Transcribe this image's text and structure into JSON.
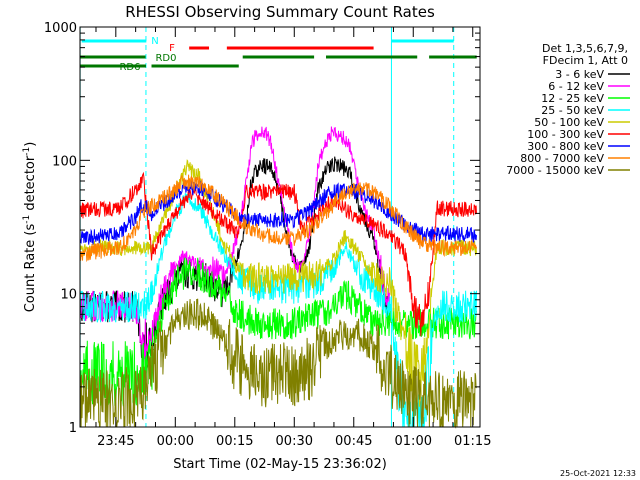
{
  "chart_data": {
    "type": "line",
    "title": "RHESSI Observing Summary Count Rates",
    "xlabel": "Start Time (02-May-15 23:36:02)",
    "ylabel_main": "Count Rate (s",
    "ylabel_sup": "-1",
    "ylabel_tail": " detector",
    "ylabel_sup2": "-1",
    "ylabel_close": ")",
    "yscale": "log",
    "ylim": [
      1,
      1000
    ],
    "xlim_minutes": [
      -24.03,
      76.83
    ],
    "x_unit": "minutes after 00:00 (03-May-15)",
    "x_ticks": [
      {
        "m": -15,
        "label": "23:45"
      },
      {
        "m": 0,
        "label": "00:00"
      },
      {
        "m": 15,
        "label": "00:15"
      },
      {
        "m": 30,
        "label": "00:30"
      },
      {
        "m": 45,
        "label": "00:45"
      },
      {
        "m": 60,
        "label": "01:00"
      },
      {
        "m": 75,
        "label": "01:15"
      }
    ],
    "y_ticks": [
      {
        "v": 1,
        "label": "1"
      },
      {
        "v": 10,
        "label": "10"
      },
      {
        "v": 100,
        "label": "100"
      },
      {
        "v": 1000,
        "label": "1000"
      }
    ],
    "legend_header": [
      "Det 1,3,5,6,7,9,",
      "FDecim 1, Att 0"
    ],
    "legend_position": "right",
    "flags": [
      {
        "label": "N",
        "color": "#00ffff",
        "segments": [
          [
            -23.6,
            -7.3
          ],
          [
            54.5,
            70.2
          ]
        ]
      },
      {
        "label": "F",
        "color": "#ff0000",
        "segments": [
          [
            3.5,
            8.5
          ],
          [
            13,
            50
          ]
        ]
      },
      {
        "label": "RD0",
        "color": "#007700",
        "segments": [
          [
            -24,
            -7.5
          ],
          [
            17,
            35
          ],
          [
            38,
            61
          ],
          [
            64,
            76
          ]
        ]
      },
      {
        "label": "RD6",
        "color": "#007700",
        "segments": [
          [
            -24,
            -7.4
          ],
          [
            -6,
            16
          ]
        ]
      }
    ],
    "vlines": [
      {
        "m": -24.0,
        "style": "solid",
        "color": "#00ffff"
      },
      {
        "m": -7.4,
        "style": "dashed",
        "color": "#00ffff"
      },
      {
        "m": 54.5,
        "style": "solid",
        "color": "#00ffff"
      },
      {
        "m": 70.2,
        "style": "dashed",
        "color": "#00ffff"
      }
    ],
    "footer_date": "25-Oct-2021 12:33",
    "series": [
      {
        "name": "3 - 6 keV",
        "color": "#000000",
        "points": [
          [
            -24,
            8
          ],
          [
            -10,
            8
          ],
          [
            -8,
            3.5
          ],
          [
            -6,
            4.5
          ],
          [
            -3,
            9
          ],
          [
            0,
            12
          ],
          [
            2,
            15
          ],
          [
            4,
            14
          ],
          [
            8,
            13
          ],
          [
            12,
            10
          ],
          [
            14,
            14
          ],
          [
            16,
            20
          ],
          [
            18,
            35
          ],
          [
            19,
            65
          ],
          [
            20,
            80
          ],
          [
            22,
            92
          ],
          [
            24,
            88
          ],
          [
            26,
            65
          ],
          [
            28,
            30
          ],
          [
            30,
            17
          ],
          [
            32,
            16
          ],
          [
            34,
            24
          ],
          [
            36,
            60
          ],
          [
            38,
            85
          ],
          [
            40,
            95
          ],
          [
            42,
            90
          ],
          [
            44,
            80
          ],
          [
            46,
            50
          ],
          [
            48,
            35
          ],
          [
            50,
            25
          ],
          [
            52,
            12
          ],
          [
            54,
            7
          ]
        ]
      },
      {
        "name": "6 - 12 keV",
        "color": "#ff00ff",
        "points": [
          [
            -24,
            8
          ],
          [
            -10,
            8
          ],
          [
            -8,
            3.5
          ],
          [
            -6,
            5
          ],
          [
            -3,
            11
          ],
          [
            0,
            16
          ],
          [
            2,
            20
          ],
          [
            4,
            17
          ],
          [
            8,
            16
          ],
          [
            12,
            13
          ],
          [
            14,
            18
          ],
          [
            16,
            30
          ],
          [
            18,
            70
          ],
          [
            19,
            120
          ],
          [
            20,
            150
          ],
          [
            22,
            170
          ],
          [
            24,
            140
          ],
          [
            26,
            70
          ],
          [
            28,
            35
          ],
          [
            30,
            17
          ],
          [
            32,
            15
          ],
          [
            34,
            30
          ],
          [
            36,
            90
          ],
          [
            38,
            140
          ],
          [
            40,
            165
          ],
          [
            42,
            150
          ],
          [
            44,
            130
          ],
          [
            46,
            70
          ],
          [
            48,
            40
          ],
          [
            50,
            30
          ],
          [
            52,
            14
          ],
          [
            54,
            8
          ]
        ]
      },
      {
        "name": "12 - 25 keV",
        "color": "#00ff00",
        "points": [
          [
            -24,
            2.5
          ],
          [
            -8,
            2.5
          ],
          [
            -6,
            3
          ],
          [
            -3,
            8
          ],
          [
            0,
            12
          ],
          [
            3,
            15
          ],
          [
            6,
            14
          ],
          [
            9,
            12
          ],
          [
            12,
            10
          ],
          [
            16,
            7
          ],
          [
            20,
            6
          ],
          [
            30,
            6
          ],
          [
            36,
            7
          ],
          [
            40,
            8
          ],
          [
            43,
            10
          ],
          [
            46,
            8
          ],
          [
            50,
            6
          ],
          [
            54,
            6
          ],
          [
            58,
            6
          ],
          [
            62,
            6
          ],
          [
            76,
            6
          ]
        ]
      },
      {
        "name": "25 - 50 keV",
        "color": "#00ffff",
        "points": [
          [
            -24,
            8
          ],
          [
            -8,
            8
          ],
          [
            -6,
            10
          ],
          [
            -3,
            22
          ],
          [
            0,
            40
          ],
          [
            3,
            52
          ],
          [
            6,
            45
          ],
          [
            9,
            30
          ],
          [
            12,
            20
          ],
          [
            16,
            13
          ],
          [
            20,
            11
          ],
          [
            30,
            11
          ],
          [
            36,
            12
          ],
          [
            40,
            15
          ],
          [
            43,
            22
          ],
          [
            46,
            15
          ],
          [
            50,
            11
          ],
          [
            54,
            8
          ],
          [
            58,
            1
          ],
          [
            62,
            1
          ],
          [
            66,
            8
          ],
          [
            76,
            8
          ]
        ]
      },
      {
        "name": "50 - 100 keV",
        "color": "#cccc00",
        "points": [
          [
            -24,
            22
          ],
          [
            -8,
            22
          ],
          [
            -6,
            22
          ],
          [
            -3,
            35
          ],
          [
            0,
            60
          ],
          [
            3,
            88
          ],
          [
            6,
            75
          ],
          [
            9,
            45
          ],
          [
            12,
            25
          ],
          [
            16,
            15
          ],
          [
            20,
            13
          ],
          [
            30,
            13
          ],
          [
            36,
            14
          ],
          [
            40,
            18
          ],
          [
            43,
            28
          ],
          [
            46,
            20
          ],
          [
            50,
            14
          ],
          [
            54,
            12
          ],
          [
            58,
            4
          ],
          [
            62,
            2
          ],
          [
            66,
            22
          ],
          [
            76,
            22
          ]
        ]
      },
      {
        "name": "100 - 300 keV",
        "color": "#ff0000",
        "points": [
          [
            -24,
            42
          ],
          [
            -14,
            44
          ],
          [
            -10,
            60
          ],
          [
            -8,
            75
          ],
          [
            -6,
            20
          ],
          [
            0,
            40
          ],
          [
            4,
            58
          ],
          [
            8,
            45
          ],
          [
            12,
            35
          ],
          [
            16,
            28
          ],
          [
            18,
            58
          ],
          [
            30,
            58
          ],
          [
            32,
            30
          ],
          [
            36,
            40
          ],
          [
            40,
            52
          ],
          [
            44,
            40
          ],
          [
            48,
            36
          ],
          [
            52,
            30
          ],
          [
            54,
            27
          ],
          [
            56,
            24
          ],
          [
            58,
            20
          ],
          [
            60,
            8
          ],
          [
            62,
            6
          ],
          [
            64,
            10
          ],
          [
            66,
            44
          ],
          [
            76,
            42
          ]
        ]
      },
      {
        "name": "300 - 800 keV",
        "color": "#0000ff",
        "points": [
          [
            -24,
            26
          ],
          [
            -14,
            28
          ],
          [
            -10,
            38
          ],
          [
            -8,
            48
          ],
          [
            -6,
            40
          ],
          [
            -2,
            50
          ],
          [
            2,
            62
          ],
          [
            6,
            62
          ],
          [
            10,
            52
          ],
          [
            14,
            42
          ],
          [
            16,
            36
          ],
          [
            24,
            36
          ],
          [
            30,
            36
          ],
          [
            34,
            42
          ],
          [
            38,
            55
          ],
          [
            42,
            60
          ],
          [
            46,
            58
          ],
          [
            50,
            50
          ],
          [
            54,
            40
          ],
          [
            58,
            33
          ],
          [
            62,
            28
          ],
          [
            66,
            28
          ],
          [
            76,
            28
          ]
        ]
      },
      {
        "name": "800 - 7000 keV",
        "color": "#ff8000",
        "points": [
          [
            -24,
            20
          ],
          [
            -14,
            22
          ],
          [
            -10,
            30
          ],
          [
            -8,
            42
          ],
          [
            -6,
            45
          ],
          [
            -2,
            55
          ],
          [
            2,
            68
          ],
          [
            6,
            68
          ],
          [
            10,
            55
          ],
          [
            14,
            42
          ],
          [
            18,
            32
          ],
          [
            22,
            28
          ],
          [
            26,
            26
          ],
          [
            30,
            26
          ],
          [
            34,
            30
          ],
          [
            38,
            40
          ],
          [
            42,
            55
          ],
          [
            46,
            63
          ],
          [
            50,
            58
          ],
          [
            54,
            45
          ],
          [
            58,
            32
          ],
          [
            62,
            24
          ],
          [
            66,
            22
          ],
          [
            76,
            22
          ]
        ]
      },
      {
        "name": "7000 - 15000 keV",
        "color": "#808000",
        "points": [
          [
            -24,
            1.6
          ],
          [
            -8,
            1.6
          ],
          [
            -6,
            2.5
          ],
          [
            -3,
            4
          ],
          [
            0,
            6
          ],
          [
            3,
            7
          ],
          [
            6,
            7
          ],
          [
            9,
            6
          ],
          [
            12,
            4.5
          ],
          [
            16,
            3
          ],
          [
            20,
            2.5
          ],
          [
            26,
            2.5
          ],
          [
            30,
            2.5
          ],
          [
            34,
            2.8
          ],
          [
            38,
            4
          ],
          [
            42,
            5
          ],
          [
            46,
            5
          ],
          [
            50,
            4
          ],
          [
            54,
            2.5
          ],
          [
            58,
            1.8
          ],
          [
            62,
            1.5
          ],
          [
            66,
            1.5
          ],
          [
            76,
            1.5
          ]
        ]
      }
    ]
  }
}
